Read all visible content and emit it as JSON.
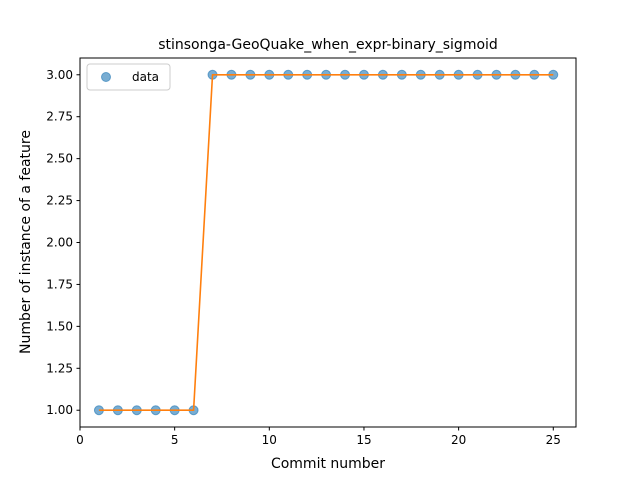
{
  "chart_data": {
    "type": "line",
    "title": "stinsonga-GeoQuake_when_expr-binary_sigmoid",
    "xlabel": "Commit number",
    "ylabel": "Number of instance of a feature",
    "xlim": [
      0,
      26.2
    ],
    "ylim": [
      0.9,
      3.1
    ],
    "xticks": [
      0,
      5,
      10,
      15,
      20,
      25
    ],
    "yticks": [
      1.0,
      1.25,
      1.5,
      1.75,
      2.0,
      2.25,
      2.5,
      2.75,
      3.0
    ],
    "ytick_labels": [
      "1.00",
      "1.25",
      "1.50",
      "1.75",
      "2.00",
      "2.25",
      "2.50",
      "2.75",
      "3.00"
    ],
    "xtick_labels": [
      "0",
      "5",
      "10",
      "15",
      "20",
      "25"
    ],
    "grid": false,
    "legend_position": "top-left",
    "series": [
      {
        "name": "data",
        "style": "scatter",
        "color": "#1f77b4",
        "x": [
          1,
          2,
          3,
          4,
          5,
          6,
          7,
          8,
          9,
          10,
          11,
          12,
          13,
          14,
          15,
          16,
          17,
          18,
          19,
          20,
          21,
          22,
          23,
          24,
          25
        ],
        "y": [
          1,
          1,
          1,
          1,
          1,
          1,
          3,
          3,
          3,
          3,
          3,
          3,
          3,
          3,
          3,
          3,
          3,
          3,
          3,
          3,
          3,
          3,
          3,
          3,
          3
        ]
      },
      {
        "style": "line",
        "color": "#ff7f0e",
        "x": [
          1,
          2,
          3,
          4,
          5,
          6,
          7,
          8,
          9,
          10,
          11,
          12,
          13,
          14,
          15,
          16,
          17,
          18,
          19,
          20,
          21,
          22,
          23,
          24,
          25
        ],
        "y": [
          1,
          1,
          1,
          1,
          1,
          1,
          3,
          3,
          3,
          3,
          3,
          3,
          3,
          3,
          3,
          3,
          3,
          3,
          3,
          3,
          3,
          3,
          3,
          3,
          3
        ]
      }
    ]
  }
}
